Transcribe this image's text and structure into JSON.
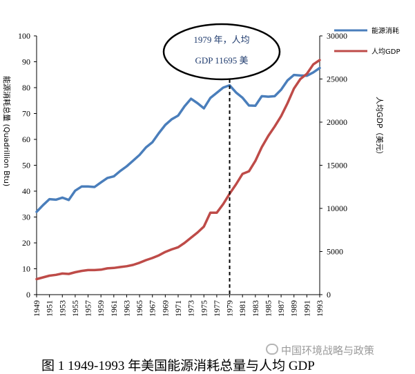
{
  "chart_data": {
    "type": "line",
    "ylabel_left": "能源消耗总量 (Quadrillion Btu)",
    "ylabel_right": "人均GDP（美元）",
    "ylim_left": [
      0,
      100
    ],
    "ylim_right": [
      0,
      30000
    ],
    "yticks_left": [
      0,
      10,
      20,
      30,
      40,
      50,
      60,
      70,
      80,
      90,
      100
    ],
    "yticks_right": [
      0,
      5000,
      10000,
      15000,
      20000,
      25000,
      30000
    ],
    "xticks": [
      "1949",
      "1951",
      "1953",
      "1955",
      "1957",
      "1959",
      "1961",
      "1963",
      "1965",
      "1967",
      "1969",
      "1971",
      "1973",
      "1975",
      "1977",
      "1979",
      "1981",
      "1983",
      "1985",
      "1987",
      "1989",
      "1991",
      "1993"
    ],
    "grid": false,
    "legend_position": "top-right",
    "series": [
      {
        "name": "能源消耗",
        "axis": "left",
        "color": "#4a7ebb",
        "x": [
          1949,
          1950,
          1951,
          1952,
          1953,
          1954,
          1955,
          1956,
          1957,
          1958,
          1959,
          1960,
          1961,
          1962,
          1963,
          1964,
          1965,
          1966,
          1967,
          1968,
          1969,
          1970,
          1971,
          1972,
          1973,
          1974,
          1975,
          1976,
          1977,
          1978,
          1979,
          1980,
          1981,
          1982,
          1983,
          1984,
          1985,
          1986,
          1987,
          1988,
          1989,
          1990,
          1991,
          1992,
          1993
        ],
        "values": [
          32.0,
          34.6,
          36.9,
          36.7,
          37.5,
          36.6,
          40.2,
          41.8,
          41.8,
          41.6,
          43.4,
          45.1,
          45.7,
          47.8,
          49.6,
          51.8,
          54.0,
          56.9,
          58.9,
          62.4,
          65.6,
          67.8,
          69.2,
          72.8,
          75.7,
          74.0,
          72.0,
          76.0,
          78.0,
          80.0,
          80.9,
          78.1,
          76.1,
          73.1,
          73.0,
          76.7,
          76.5,
          76.7,
          79.2,
          82.8,
          84.9,
          84.7,
          84.6,
          85.9,
          87.6
        ]
      },
      {
        "name": "人均GDP",
        "axis": "right",
        "color": "#be4b48",
        "x": [
          1949,
          1950,
          1951,
          1952,
          1953,
          1954,
          1955,
          1956,
          1957,
          1958,
          1959,
          1960,
          1961,
          1962,
          1963,
          1964,
          1965,
          1966,
          1967,
          1968,
          1969,
          1970,
          1971,
          1972,
          1973,
          1974,
          1975,
          1976,
          1977,
          1978,
          1979,
          1980,
          1981,
          1982,
          1983,
          1984,
          1985,
          1986,
          1987,
          1988,
          1989,
          1990,
          1991,
          1992,
          1993
        ],
        "values": [
          1800,
          2000,
          2200,
          2300,
          2450,
          2400,
          2600,
          2750,
          2850,
          2850,
          2900,
          3050,
          3100,
          3200,
          3300,
          3450,
          3700,
          4000,
          4250,
          4550,
          4950,
          5250,
          5500,
          6000,
          6600,
          7200,
          7900,
          9500,
          9500,
          10500,
          11695,
          12800,
          14000,
          14300,
          15500,
          17100,
          18400,
          19500,
          20700,
          22200,
          23900,
          25000,
          25600,
          26700,
          27200
        ]
      }
    ],
    "annotation": {
      "year": 1979,
      "line1": "1979 年，人均",
      "line2": "GDP 11695 美"
    }
  },
  "caption": "图 1 1949-1993 年美国能源消耗总量与人均 GDP",
  "watermark": "中国环境战略与政策"
}
